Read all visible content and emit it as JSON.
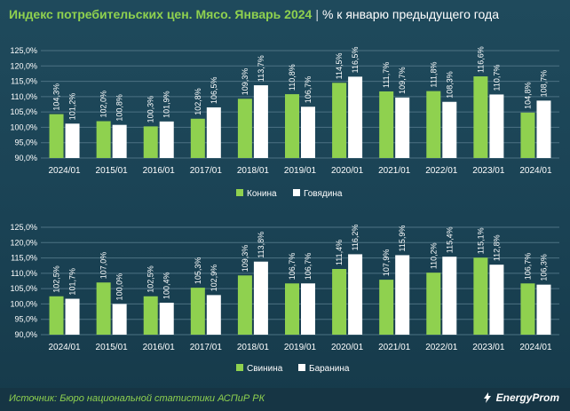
{
  "header": {
    "title": "Индекс потребительских цен. Мясо. Январь 2024",
    "separator": "|",
    "subtitle": "% к январю предыдущего года"
  },
  "footer": {
    "source": "Источник: Бюро национальной статистики АСПиР РК",
    "logo_text": "EnergyProm"
  },
  "colors": {
    "green": "#8fd14f",
    "white": "#ffffff",
    "grid": "#4d7283"
  },
  "chart_data": [
    {
      "type": "bar",
      "categories": [
        "2024/01",
        "2015/01",
        "2016/01",
        "2017/01",
        "2018/01",
        "2019/01",
        "2020/01",
        "2021/01",
        "2022/01",
        "2023/01",
        "2024/01"
      ],
      "series": [
        {
          "name": "Конина",
          "values": [
            104.3,
            102.0,
            100.3,
            102.8,
            109.3,
            110.8,
            114.5,
            111.7,
            111.8,
            116.6,
            104.8
          ],
          "labels": [
            "104,3%",
            "102,0%",
            "100,3%",
            "102,8%",
            "109,3%",
            "110,8%",
            "114,5%",
            "111,7%",
            "111,8%",
            "116,6%",
            "104,8%"
          ],
          "color": "#8fd14f"
        },
        {
          "name": "Говядина",
          "values": [
            101.2,
            100.8,
            101.9,
            106.5,
            113.7,
            106.7,
            116.5,
            109.7,
            108.3,
            110.7,
            108.7
          ],
          "labels": [
            "101,2%",
            "100,8%",
            "101,9%",
            "106,5%",
            "113,7%",
            "106,7%",
            "116,5%",
            "109,7%",
            "108,3%",
            "110,7%",
            "108,7%"
          ],
          "color": "#ffffff"
        }
      ],
      "yticks": [
        "90,0%",
        "95,0%",
        "100,0%",
        "105,0%",
        "110,0%",
        "115,0%",
        "120,0%",
        "125,0%"
      ],
      "ylim": [
        90,
        125
      ],
      "grid": true,
      "legend": "bottom-center"
    },
    {
      "type": "bar",
      "categories": [
        "2024/01",
        "2015/01",
        "2016/01",
        "2017/01",
        "2018/01",
        "2019/01",
        "2020/01",
        "2021/01",
        "2022/01",
        "2023/01",
        "2024/01"
      ],
      "series": [
        {
          "name": "Свинина",
          "values": [
            102.5,
            107.0,
            102.5,
            105.3,
            109.3,
            106.7,
            111.4,
            107.9,
            110.2,
            115.1,
            106.7
          ],
          "labels": [
            "102,5%",
            "107,0%",
            "102,5%",
            "105,3%",
            "109,3%",
            "106,7%",
            "111,4%",
            "107,9%",
            "110,2%",
            "115,1%",
            "106,7%"
          ],
          "color": "#8fd14f"
        },
        {
          "name": "Баранина",
          "values": [
            101.7,
            100.0,
            100.4,
            102.9,
            113.8,
            106.7,
            116.2,
            115.9,
            115.4,
            112.8,
            106.3
          ],
          "labels": [
            "101,7%",
            "100,0%",
            "100,4%",
            "102,9%",
            "113,8%",
            "106,7%",
            "116,2%",
            "115,9%",
            "115,4%",
            "112,8%",
            "106,3%"
          ],
          "color": "#ffffff"
        }
      ],
      "yticks": [
        "90,0%",
        "95,0%",
        "100,0%",
        "105,0%",
        "110,0%",
        "115,0%",
        "120,0%",
        "125,0%"
      ],
      "ylim": [
        90,
        125
      ],
      "grid": true,
      "legend": "bottom-center"
    }
  ]
}
